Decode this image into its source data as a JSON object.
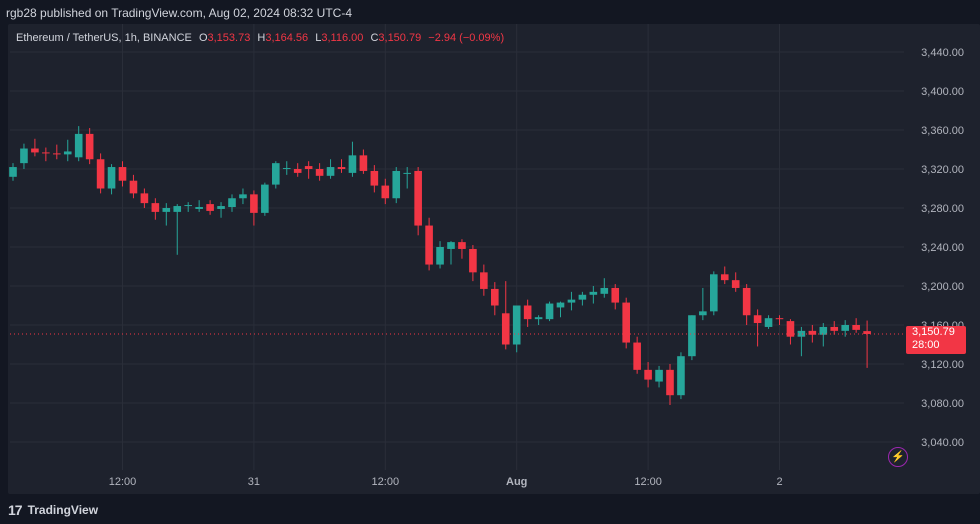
{
  "header": {
    "published": "rgb28 published on TradingView.com, Aug 02, 2024 08:32 UTC-4"
  },
  "legend": {
    "symbol": "Ethereum / TetherUS, 1h, BINANCE",
    "o_label": "O",
    "o": "3,153.73",
    "h_label": "H",
    "h": "3,164.56",
    "l_label": "L",
    "l": "3,116.00",
    "c_label": "C",
    "c": "3,150.79",
    "change": "−2.94 (−0.09%)"
  },
  "price_tag": {
    "price": "3,150.79",
    "countdown": "28:00"
  },
  "footer": {
    "brand": "TradingView",
    "logo": "tradingview-logo-icon"
  },
  "colors": {
    "up": "#26a69a",
    "down": "#f23645",
    "background": "#1e222d",
    "grid": "#2a2e39"
  },
  "chart_data": {
    "type": "candlestick",
    "symbol": "ETHUSDT",
    "interval": "1h",
    "ylim": [
      3020,
      3460
    ],
    "y_ticks": [
      "3,040.00",
      "3,080.00",
      "3,120.00",
      "3,160.00",
      "3,200.00",
      "3,240.00",
      "3,280.00",
      "3,320.00",
      "3,360.00",
      "3,400.00",
      "3,440.00"
    ],
    "y_tick_values": [
      3040,
      3080,
      3120,
      3160,
      3200,
      3240,
      3280,
      3320,
      3360,
      3400,
      3440
    ],
    "x_ticks": [
      {
        "label": "12:00",
        "index": 10
      },
      {
        "label": "31",
        "index": 22
      },
      {
        "label": "12:00",
        "index": 34
      },
      {
        "label": "Aug",
        "index": 46
      },
      {
        "label": "12:00",
        "index": 58
      },
      {
        "label": "2",
        "index": 70
      }
    ],
    "last_price": 3150.79,
    "candles": [
      {
        "o": 3312,
        "h": 3326,
        "l": 3308,
        "c": 3322
      },
      {
        "o": 3326,
        "h": 3346,
        "l": 3320,
        "c": 3341
      },
      {
        "o": 3341,
        "h": 3351,
        "l": 3333,
        "c": 3337
      },
      {
        "o": 3337,
        "h": 3342,
        "l": 3328,
        "c": 3336
      },
      {
        "o": 3336,
        "h": 3345,
        "l": 3330,
        "c": 3335
      },
      {
        "o": 3335,
        "h": 3350,
        "l": 3328,
        "c": 3338
      },
      {
        "o": 3332,
        "h": 3364,
        "l": 3328,
        "c": 3356
      },
      {
        "o": 3356,
        "h": 3362,
        "l": 3325,
        "c": 3330
      },
      {
        "o": 3330,
        "h": 3336,
        "l": 3295,
        "c": 3300
      },
      {
        "o": 3300,
        "h": 3325,
        "l": 3294,
        "c": 3322
      },
      {
        "o": 3322,
        "h": 3328,
        "l": 3302,
        "c": 3308
      },
      {
        "o": 3308,
        "h": 3314,
        "l": 3290,
        "c": 3295
      },
      {
        "o": 3295,
        "h": 3300,
        "l": 3280,
        "c": 3285
      },
      {
        "o": 3285,
        "h": 3290,
        "l": 3268,
        "c": 3276
      },
      {
        "o": 3276,
        "h": 3285,
        "l": 3262,
        "c": 3280
      },
      {
        "o": 3276,
        "h": 3284,
        "l": 3232,
        "c": 3282
      },
      {
        "o": 3282,
        "h": 3286,
        "l": 3276,
        "c": 3283
      },
      {
        "o": 3279,
        "h": 3288,
        "l": 3276,
        "c": 3281
      },
      {
        "o": 3284,
        "h": 3288,
        "l": 3273,
        "c": 3277
      },
      {
        "o": 3279,
        "h": 3286,
        "l": 3270,
        "c": 3282
      },
      {
        "o": 3281,
        "h": 3294,
        "l": 3276,
        "c": 3290
      },
      {
        "o": 3290,
        "h": 3300,
        "l": 3284,
        "c": 3294
      },
      {
        "o": 3294,
        "h": 3298,
        "l": 3262,
        "c": 3275
      },
      {
        "o": 3275,
        "h": 3306,
        "l": 3272,
        "c": 3304
      },
      {
        "o": 3304,
        "h": 3328,
        "l": 3300,
        "c": 3326
      },
      {
        "o": 3321,
        "h": 3328,
        "l": 3314,
        "c": 3321
      },
      {
        "o": 3320,
        "h": 3326,
        "l": 3312,
        "c": 3316
      },
      {
        "o": 3323,
        "h": 3328,
        "l": 3310,
        "c": 3320
      },
      {
        "o": 3320,
        "h": 3326,
        "l": 3308,
        "c": 3313
      },
      {
        "o": 3313,
        "h": 3330,
        "l": 3310,
        "c": 3322
      },
      {
        "o": 3322,
        "h": 3330,
        "l": 3316,
        "c": 3320
      },
      {
        "o": 3316,
        "h": 3348,
        "l": 3312,
        "c": 3334
      },
      {
        "o": 3334,
        "h": 3340,
        "l": 3315,
        "c": 3318
      },
      {
        "o": 3318,
        "h": 3324,
        "l": 3296,
        "c": 3303
      },
      {
        "o": 3303,
        "h": 3310,
        "l": 3284,
        "c": 3290
      },
      {
        "o": 3290,
        "h": 3322,
        "l": 3285,
        "c": 3318
      },
      {
        "o": 3316,
        "h": 3322,
        "l": 3300,
        "c": 3316
      },
      {
        "o": 3318,
        "h": 3322,
        "l": 3252,
        "c": 3262
      },
      {
        "o": 3262,
        "h": 3270,
        "l": 3216,
        "c": 3222
      },
      {
        "o": 3222,
        "h": 3246,
        "l": 3218,
        "c": 3240
      },
      {
        "o": 3238,
        "h": 3246,
        "l": 3222,
        "c": 3245
      },
      {
        "o": 3245,
        "h": 3248,
        "l": 3228,
        "c": 3238
      },
      {
        "o": 3238,
        "h": 3242,
        "l": 3205,
        "c": 3214
      },
      {
        "o": 3214,
        "h": 3222,
        "l": 3190,
        "c": 3197
      },
      {
        "o": 3197,
        "h": 3204,
        "l": 3170,
        "c": 3180
      },
      {
        "o": 3172,
        "h": 3205,
        "l": 3135,
        "c": 3140
      },
      {
        "o": 3140,
        "h": 3180,
        "l": 3132,
        "c": 3180
      },
      {
        "o": 3180,
        "h": 3186,
        "l": 3158,
        "c": 3166
      },
      {
        "o": 3166,
        "h": 3170,
        "l": 3160,
        "c": 3168
      },
      {
        "o": 3166,
        "h": 3184,
        "l": 3164,
        "c": 3182
      },
      {
        "o": 3178,
        "h": 3184,
        "l": 3168,
        "c": 3183
      },
      {
        "o": 3183,
        "h": 3194,
        "l": 3175,
        "c": 3186
      },
      {
        "o": 3186,
        "h": 3194,
        "l": 3180,
        "c": 3191
      },
      {
        "o": 3191,
        "h": 3200,
        "l": 3182,
        "c": 3194
      },
      {
        "o": 3192,
        "h": 3208,
        "l": 3188,
        "c": 3198
      },
      {
        "o": 3198,
        "h": 3202,
        "l": 3176,
        "c": 3183
      },
      {
        "o": 3183,
        "h": 3188,
        "l": 3136,
        "c": 3142
      },
      {
        "o": 3142,
        "h": 3148,
        "l": 3110,
        "c": 3114
      },
      {
        "o": 3114,
        "h": 3122,
        "l": 3096,
        "c": 3104
      },
      {
        "o": 3102,
        "h": 3118,
        "l": 3096,
        "c": 3114
      },
      {
        "o": 3114,
        "h": 3120,
        "l": 3078,
        "c": 3088
      },
      {
        "o": 3088,
        "h": 3132,
        "l": 3084,
        "c": 3128
      },
      {
        "o": 3128,
        "h": 3170,
        "l": 3124,
        "c": 3170
      },
      {
        "o": 3170,
        "h": 3198,
        "l": 3165,
        "c": 3174
      },
      {
        "o": 3174,
        "h": 3215,
        "l": 3170,
        "c": 3212
      },
      {
        "o": 3212,
        "h": 3220,
        "l": 3202,
        "c": 3206
      },
      {
        "o": 3206,
        "h": 3214,
        "l": 3194,
        "c": 3198
      },
      {
        "o": 3198,
        "h": 3202,
        "l": 3160,
        "c": 3170
      },
      {
        "o": 3170,
        "h": 3176,
        "l": 3138,
        "c": 3162
      },
      {
        "o": 3158,
        "h": 3170,
        "l": 3156,
        "c": 3167
      },
      {
        "o": 3167,
        "h": 3170,
        "l": 3160,
        "c": 3166
      },
      {
        "o": 3164,
        "h": 3166,
        "l": 3140,
        "c": 3148
      },
      {
        "o": 3148,
        "h": 3158,
        "l": 3128,
        "c": 3154
      },
      {
        "o": 3154,
        "h": 3160,
        "l": 3142,
        "c": 3150
      },
      {
        "o": 3150,
        "h": 3162,
        "l": 3138,
        "c": 3158
      },
      {
        "o": 3158,
        "h": 3164,
        "l": 3150,
        "c": 3154
      },
      {
        "o": 3154,
        "h": 3165,
        "l": 3148,
        "c": 3160
      },
      {
        "o": 3160,
        "h": 3167,
        "l": 3152,
        "c": 3155
      },
      {
        "o": 3153.73,
        "h": 3164.56,
        "l": 3116.0,
        "c": 3150.79
      }
    ]
  }
}
